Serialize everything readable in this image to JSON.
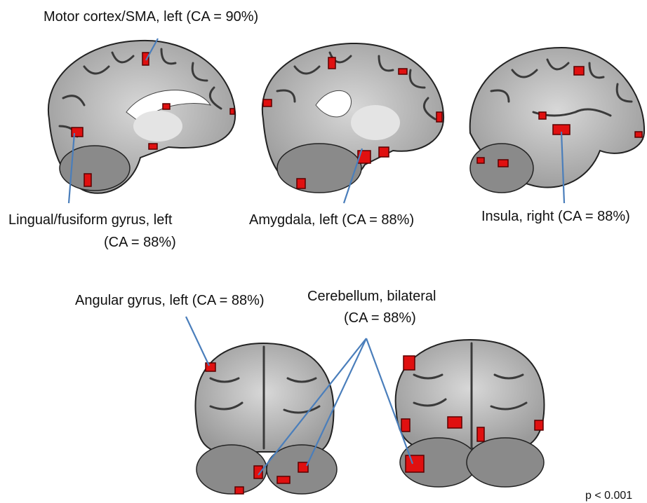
{
  "labels": [
    {
      "lines": [
        "Motor cortex/SMA, left (CA = 90%)"
      ]
    },
    {
      "lines": [
        "Lingual/fusiform gyrus, left",
        "(CA = 88%)"
      ]
    },
    {
      "lines": [
        "Amygdala, left (CA = 88%)"
      ]
    },
    {
      "lines": [
        "Insula, right (CA = 88%)"
      ]
    },
    {
      "lines": [
        "Angular gyrus, left (CA = 88%)"
      ]
    },
    {
      "lines": [
        "Cerebellum, bilateral",
        "(CA = 88%)"
      ]
    }
  ],
  "threshold": "p < 0.001"
}
